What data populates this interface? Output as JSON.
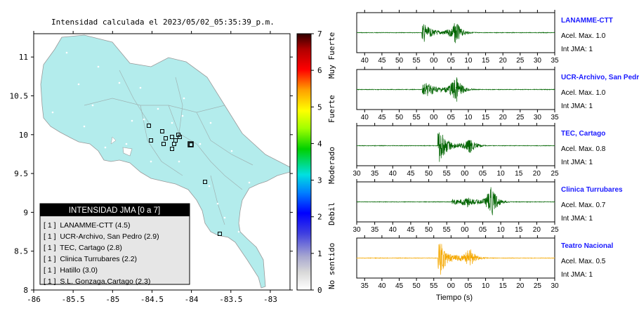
{
  "map": {
    "title": "Intensidad calculada el 2023/05/02_05:35:39_p.m.",
    "xticks": [
      "-86",
      "-85.5",
      "-85",
      "-84.5",
      "-84",
      "-83.5",
      "-83"
    ],
    "yticks": [
      "11",
      "10.5",
      "10",
      "9.5",
      "9",
      "8.5",
      "8"
    ],
    "xlim": [
      -86,
      -82.75
    ],
    "ylim": [
      8,
      11.3
    ],
    "land_color": "#b3ecec",
    "colorbar": {
      "ticks": [
        "0",
        "1",
        "2",
        "3",
        "4",
        "5",
        "6",
        "7"
      ],
      "labels": [
        "No sentido",
        "Debil",
        "Moderado",
        "Fuerte",
        "Muy Fuerte"
      ]
    },
    "legend": {
      "title": "INTENSIDAD JMA [0 a 7]",
      "items": [
        "[ 1 ]  LANAMME-CTT (4.5)",
        "[ 1 ]  UCR-Archivo, San Pedro (2.9)",
        "[ 1 ]  TEC, Cartago (2.8)",
        "[ 1 ]  Clinica Turrubares (2.2)",
        "[ 1 ]  Hatillo (3.0)",
        "[ 1 ]  S.L. Gonzaga,Cartago (2.3)"
      ]
    }
  },
  "chart_data": [
    {
      "type": "line",
      "title": "Intensidad calculada el 2023/05/02_05:35:39_p.m.",
      "note": "map of Costa Rica with station markers",
      "x_ticks": [
        -86,
        -85.5,
        -85,
        -84.5,
        -84,
        -83.5,
        -83
      ],
      "y_ticks": [
        11,
        10.5,
        10,
        9.5,
        9,
        8.5,
        8
      ]
    },
    {
      "type": "line",
      "xlabel": "Tiempo (s)",
      "series": [
        {
          "name": "LANAMME-CTT",
          "acel_max": "Acel. Max. 1.0",
          "int_jma": "Int JMA: 1",
          "color": "#006400",
          "ticks": [
            "40",
            "45",
            "50",
            "55",
            "00",
            "05",
            "10",
            "15",
            "20",
            "25",
            "30",
            "35"
          ]
        },
        {
          "name": "UCR-Archivo, San Pedro",
          "acel_max": "Acel. Max. 1.0",
          "int_jma": "Int JMA: 1",
          "color": "#006400",
          "ticks": [
            "40",
            "45",
            "50",
            "55",
            "00",
            "05",
            "10",
            "15",
            "20",
            "25",
            "30",
            "35"
          ]
        },
        {
          "name": "TEC, Cartago",
          "acel_max": "Acel. Max. 0.8",
          "int_jma": "Int JMA: 1",
          "color": "#006400",
          "ticks": [
            "30",
            "35",
            "40",
            "45",
            "50",
            "55",
            "00",
            "05",
            "10",
            "15",
            "20",
            "25"
          ]
        },
        {
          "name": "Clinica Turrubares",
          "acel_max": "Acel. Max. 0.7",
          "int_jma": "Int JMA: 1",
          "color": "#006400",
          "ticks": [
            "30",
            "35",
            "40",
            "45",
            "50",
            "55",
            "00",
            "05",
            "10",
            "15",
            "20",
            "25"
          ]
        },
        {
          "name": "Teatro Nacional",
          "acel_max": "Acel. Max. 0.5",
          "int_jma": "Int JMA: 1",
          "color": "#f5a800",
          "ticks": [
            "35",
            "40",
            "45",
            "50",
            "55",
            "00",
            "05",
            "10",
            "15",
            "20",
            "25",
            "30"
          ]
        }
      ]
    }
  ]
}
